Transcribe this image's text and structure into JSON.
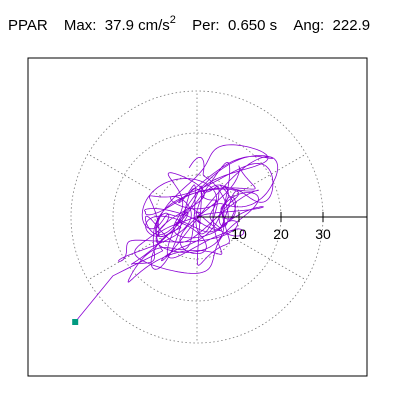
{
  "header": {
    "station": "PPAR",
    "max_label": "Max:",
    "max_value": "37.9 cm/s",
    "max_exp": "2",
    "per_label": "Per:",
    "per_value": "0.650 s",
    "ang_label": "Ang:",
    "ang_value": "222.9"
  },
  "chart_data": {
    "type": "polar-orbit",
    "title": "",
    "radial_ticks": [
      10,
      20,
      30
    ],
    "radial_rings": [
      10,
      20,
      30
    ],
    "sector_spokes_deg": [
      30,
      90,
      150,
      210,
      270,
      330
    ],
    "ring_style": "dotted",
    "axis": "positive-x",
    "max": 37.9,
    "max_unit": "cm/s2",
    "period_s": 0.65,
    "angle_deg": 222.9,
    "end_marker": [
      -29.0,
      -25.0
    ],
    "orbit_color": "#8a00d4",
    "marker_color": "#009a80"
  }
}
